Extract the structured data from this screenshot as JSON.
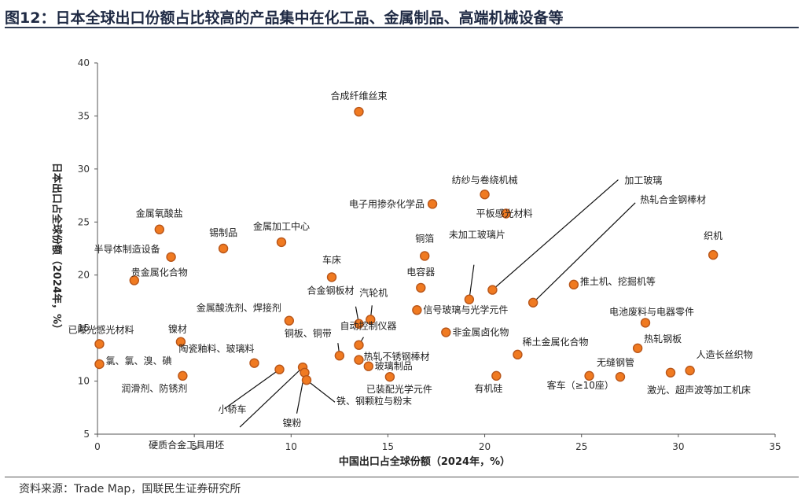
{
  "page": {
    "title": "图12：日本全球出口份额占比较高的产品集中在化工品、金属制品、高端机械设备等",
    "source": "资料来源：Trade Map，国联民生证券研究所"
  },
  "colors": {
    "marker_fill": "#f07a21",
    "marker_stroke": "#b8561a",
    "axis": "#555555",
    "rule": "#2f3b52"
  },
  "chart_data": {
    "type": "scatter",
    "xlabel": "中国出口占全球份额（2024年，%）",
    "ylabel": "日本出口占全球份额（2024年，%）",
    "xlim": [
      0,
      35
    ],
    "ylim": [
      5,
      40
    ],
    "xticks": [
      0,
      5,
      10,
      15,
      20,
      25,
      30,
      35
    ],
    "yticks": [
      5,
      10,
      15,
      20,
      25,
      30,
      35,
      40
    ],
    "grid": false,
    "points": [
      {
        "label": "合成纤维丝束",
        "x": 13.5,
        "y": 35.4
      },
      {
        "label": "纺纱与卷绕机械",
        "x": 20.0,
        "y": 27.6
      },
      {
        "label": "电子用掺杂化学品",
        "x": 17.3,
        "y": 26.7
      },
      {
        "label": "平板感光材料",
        "x": 21.1,
        "y": 25.8
      },
      {
        "label": "金属氧酸盐",
        "x": 3.2,
        "y": 24.3
      },
      {
        "label": "锡制品",
        "x": 6.5,
        "y": 22.5
      },
      {
        "label": "金属加工中心",
        "x": 9.5,
        "y": 23.1
      },
      {
        "label": "半导体制造设备",
        "x": 3.8,
        "y": 21.7
      },
      {
        "label": "铜箔",
        "x": 16.9,
        "y": 21.8
      },
      {
        "label": "织机",
        "x": 31.8,
        "y": 21.9
      },
      {
        "label": "贵金属化合物",
        "x": 1.9,
        "y": 19.5
      },
      {
        "label": "车床",
        "x": 12.1,
        "y": 19.8
      },
      {
        "label": "电容器",
        "x": 16.7,
        "y": 18.8
      },
      {
        "label": "推土机、挖掘机等",
        "x": 24.6,
        "y": 19.1
      },
      {
        "label": "未加工玻璃片",
        "x": 19.2,
        "y": 17.7
      },
      {
        "label": "加工玻璃",
        "x": 20.4,
        "y": 18.6
      },
      {
        "label": "热轧合金钢棒材",
        "x": 22.5,
        "y": 17.4
      },
      {
        "label": "合金钢板材",
        "x": 13.5,
        "y": 15.4
      },
      {
        "label": "汽轮机",
        "x": 14.1,
        "y": 15.8
      },
      {
        "label": "信号玻璃与光学元件",
        "x": 16.5,
        "y": 16.7
      },
      {
        "label": "金属酸洗剂、焊接剂",
        "x": 9.9,
        "y": 15.7
      },
      {
        "label": "电池废料与电器零件",
        "x": 28.3,
        "y": 15.5
      },
      {
        "label": "已曝光感光材料",
        "x": 0.1,
        "y": 13.5
      },
      {
        "label": "镍材",
        "x": 4.3,
        "y": 13.7
      },
      {
        "label": "铜板、铜带",
        "x": 12.5,
        "y": 12.4
      },
      {
        "label": "自动控制仪器",
        "x": 13.5,
        "y": 13.4
      },
      {
        "label": "非金属卤化物",
        "x": 18.0,
        "y": 14.6
      },
      {
        "label": "热轧钢板",
        "x": 27.9,
        "y": 13.1
      },
      {
        "label": "陶瓷釉料、玻璃料",
        "x": 8.1,
        "y": 11.7
      },
      {
        "label": "热轧不锈钢棒材",
        "x": 13.5,
        "y": 12.0
      },
      {
        "label": "稀土金属化合物",
        "x": 21.7,
        "y": 12.5
      },
      {
        "label": "人造长丝织物",
        "x": 30.6,
        "y": 11.0
      },
      {
        "label": "氯、氯、溴、碘",
        "x": 0.1,
        "y": 11.6
      },
      {
        "label": "玻璃制品",
        "x": 14.0,
        "y": 11.4
      },
      {
        "label": "润滑剂、防锈剂",
        "x": 4.4,
        "y": 10.5
      },
      {
        "label": "小轿车",
        "x": 9.4,
        "y": 11.1
      },
      {
        "label": "硬质合金工具用坯",
        "x": 10.6,
        "y": 11.3
      },
      {
        "label": "镍粉",
        "x": 10.7,
        "y": 10.8
      },
      {
        "label": "铁、钢颗粒与粉末",
        "x": 10.8,
        "y": 10.1
      },
      {
        "label": "已装配光学元件",
        "x": 15.1,
        "y": 10.4
      },
      {
        "label": "有机硅",
        "x": 20.6,
        "y": 10.5
      },
      {
        "label": "客车（≥10座）",
        "x": 25.4,
        "y": 10.5
      },
      {
        "label": "无缝钢管",
        "x": 27.0,
        "y": 10.4
      },
      {
        "label": "激光、超声波等加工机床",
        "x": 29.6,
        "y": 10.8
      }
    ]
  }
}
